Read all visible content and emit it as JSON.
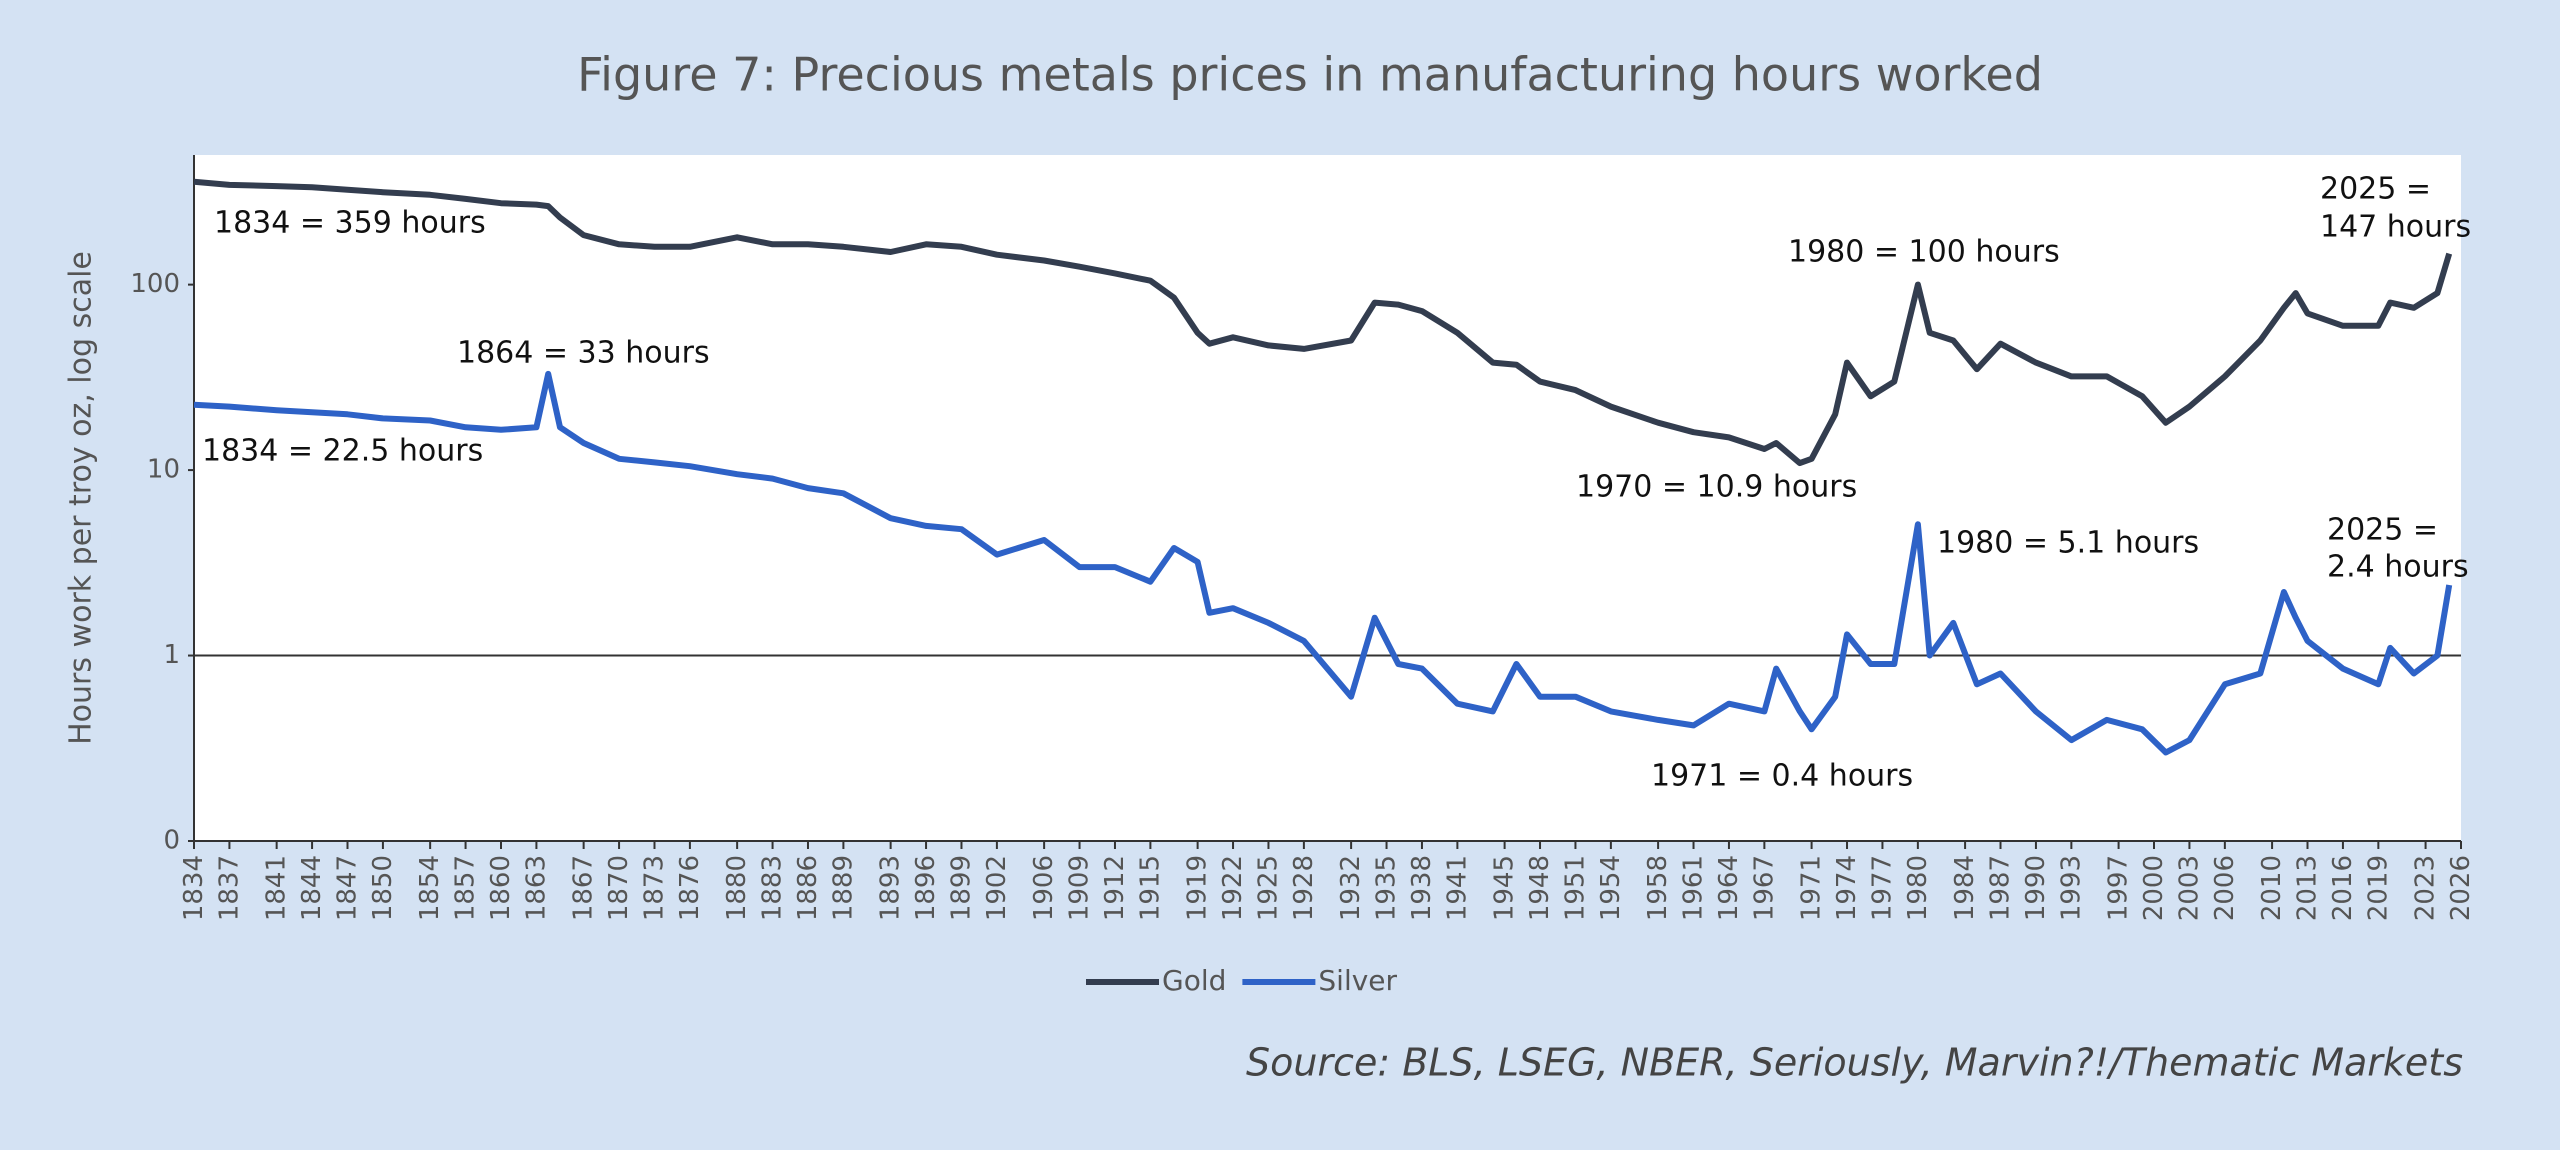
{
  "chart_data": {
    "type": "line",
    "title": "Figure 7: Precious metals prices in manufacturing hours worked",
    "y_label": "Hours work per troy oz, log scale",
    "source": "Source: BLS, LSEG, NBER, Seriously, Marvin?!/Thematic Markets",
    "log_y": true,
    "reference_line": 1,
    "legend": "bottom",
    "xlim": [
      1834,
      2026
    ],
    "xticks": [
      1834,
      1837,
      1841,
      1844,
      1847,
      1850,
      1854,
      1857,
      1860,
      1863,
      1867,
      1870,
      1873,
      1876,
      1880,
      1883,
      1886,
      1889,
      1893,
      1896,
      1899,
      1902,
      1906,
      1909,
      1912,
      1915,
      1919,
      1922,
      1925,
      1928,
      1932,
      1935,
      1938,
      1941,
      1945,
      1948,
      1951,
      1954,
      1958,
      1961,
      1964,
      1967,
      1971,
      1974,
      1977,
      1980,
      1984,
      1987,
      1990,
      1993,
      1997,
      2000,
      2003,
      2006,
      2010,
      2013,
      2016,
      2019,
      2023,
      2026
    ],
    "ylim": [
      0.1,
      500
    ],
    "yticks": [
      {
        "value": 0.1,
        "label": "0"
      },
      1,
      10,
      100
    ],
    "x": [
      1834,
      1837,
      1841,
      1844,
      1847,
      1850,
      1854,
      1857,
      1860,
      1863,
      1864,
      1865,
      1867,
      1870,
      1873,
      1876,
      1880,
      1883,
      1886,
      1889,
      1893,
      1896,
      1899,
      1902,
      1906,
      1909,
      1912,
      1915,
      1917,
      1919,
      1920,
      1922,
      1925,
      1928,
      1932,
      1934,
      1936,
      1938,
      1941,
      1944,
      1946,
      1948,
      1951,
      1954,
      1958,
      1961,
      1964,
      1967,
      1968,
      1970,
      1971,
      1973,
      1974,
      1976,
      1978,
      1980,
      1981,
      1983,
      1985,
      1987,
      1990,
      1993,
      1996,
      1999,
      2001,
      2003,
      2006,
      2009,
      2011,
      2012,
      2013,
      2016,
      2019,
      2020,
      2022,
      2024,
      2025
    ],
    "series": [
      {
        "name": "Gold",
        "color": "#333d4f",
        "values": [
          359,
          345,
          340,
          335,
          325,
          315,
          305,
          290,
          275,
          270,
          265,
          230,
          185,
          165,
          160,
          160,
          180,
          165,
          165,
          160,
          150,
          165,
          160,
          145,
          135,
          125,
          115,
          105,
          85,
          55,
          48,
          52,
          47,
          45,
          50,
          80,
          78,
          72,
          55,
          38,
          37,
          30,
          27,
          22,
          18,
          16,
          15,
          13,
          14,
          10.9,
          11.5,
          20,
          38,
          25,
          30,
          100,
          55,
          50,
          35,
          48,
          38,
          32,
          32,
          25,
          18,
          22,
          32,
          50,
          75,
          90,
          70,
          60,
          60,
          80,
          75,
          90,
          147
        ]
      },
      {
        "name": "Silver",
        "color": "#2e62c7",
        "values": [
          22.5,
          22,
          21,
          20.5,
          20,
          19,
          18.5,
          17,
          16.5,
          17,
          33,
          17,
          14,
          11.5,
          11,
          10.5,
          9.5,
          9,
          8,
          7.5,
          5.5,
          5,
          4.8,
          3.5,
          4.2,
          3,
          3,
          2.5,
          3.8,
          3.2,
          1.7,
          1.8,
          1.5,
          1.2,
          0.6,
          1.6,
          0.9,
          0.85,
          0.55,
          0.5,
          0.9,
          0.6,
          0.6,
          0.5,
          0.45,
          0.42,
          0.55,
          0.5,
          0.85,
          0.5,
          0.4,
          0.6,
          1.3,
          0.9,
          0.9,
          5.1,
          1.0,
          1.5,
          0.7,
          0.8,
          0.5,
          0.35,
          0.45,
          0.4,
          0.3,
          0.35,
          0.7,
          0.8,
          2.2,
          1.6,
          1.2,
          0.85,
          0.7,
          1.1,
          0.8,
          1.0,
          2.4
        ]
      }
    ],
    "annotations": [
      "1834 = 359 hours",
      "1834 = 22.5 hours",
      "1864 = 33 hours",
      "1980 = 100 hours",
      "1970 = 10.9 hours",
      "1980 = 5.1 hours",
      "1971 = 0.4 hours",
      "2025 =",
      "147 hours",
      "2025 =",
      "2.4 hours"
    ]
  }
}
